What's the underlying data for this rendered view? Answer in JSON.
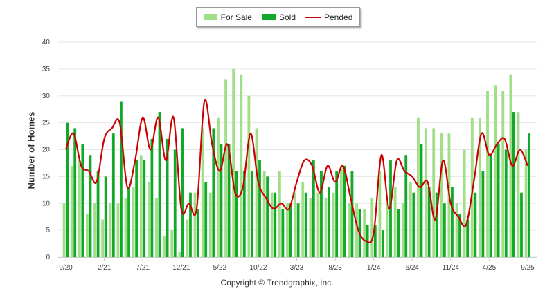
{
  "chart_data": {
    "type": "bar",
    "title": "",
    "ylabel": "Number of Homes",
    "xlabel": "",
    "ylim": [
      0,
      40
    ],
    "yticks": [
      "0",
      "5",
      "10",
      "15",
      "20",
      "25",
      "30",
      "35",
      "40"
    ],
    "grid": true,
    "legend_position": "top-center",
    "months": [
      "9/20",
      "10/20",
      "11/20",
      "12/20",
      "1/21",
      "2/21",
      "3/21",
      "4/21",
      "5/21",
      "6/21",
      "7/21",
      "8/21",
      "9/21",
      "10/21",
      "11/21",
      "12/21",
      "1/22",
      "2/22",
      "3/22",
      "4/22",
      "5/22",
      "6/22",
      "7/22",
      "8/22",
      "9/22",
      "10/22",
      "11/22",
      "12/22",
      "1/23",
      "2/23",
      "3/23",
      "4/23",
      "5/23",
      "6/23",
      "7/23",
      "8/23",
      "9/23",
      "10/23",
      "11/23",
      "12/23",
      "1/24",
      "2/24",
      "3/24",
      "4/24",
      "5/24",
      "6/24",
      "7/24",
      "8/24",
      "9/24",
      "10/24",
      "11/24",
      "12/24",
      "1/25",
      "2/25",
      "3/25",
      "4/25",
      "5/25",
      "6/25",
      "7/25",
      "8/25",
      "9/25"
    ],
    "xtick_labels": [
      "9/20",
      "2/21",
      "7/21",
      "12/21",
      "5/22",
      "10/22",
      "3/23",
      "8/23",
      "1/24",
      "6/24",
      "11/24",
      "4/25",
      "9/25"
    ],
    "series": [
      {
        "name": "For Sale",
        "type": "bar",
        "color": "#9fdf85",
        "values": [
          10,
          17,
          18,
          8,
          10,
          7,
          10,
          10,
          11,
          13,
          19,
          14,
          11,
          4,
          5,
          1,
          7,
          12,
          24,
          12,
          26,
          33,
          35,
          34,
          30,
          24,
          16,
          12,
          16,
          10,
          12,
          14,
          11,
          12,
          11,
          12,
          17,
          10,
          10,
          9,
          11,
          16,
          10,
          13,
          10,
          14,
          26,
          24,
          24,
          23,
          23,
          10,
          20,
          26,
          26,
          31,
          32,
          31,
          34,
          27,
          20
        ]
      },
      {
        "name": "Sold",
        "type": "bar",
        "color": "#12a829",
        "values": [
          25,
          24,
          21,
          19,
          16,
          15,
          23,
          29,
          13,
          18,
          18,
          22,
          27,
          22,
          20,
          24,
          12,
          9,
          14,
          24,
          21,
          21,
          16,
          16,
          16,
          18,
          15,
          12,
          9,
          10,
          10,
          12,
          18,
          16,
          13,
          16,
          17,
          16,
          9,
          6,
          6,
          5,
          18,
          9,
          19,
          12,
          21,
          13,
          12,
          10,
          13,
          8,
          7,
          12,
          16,
          19,
          21,
          20,
          27,
          12,
          23
        ]
      },
      {
        "name": "Pended",
        "type": "line",
        "color": "#cc0000",
        "values": [
          20,
          23,
          17,
          16,
          14,
          22,
          24,
          25,
          13,
          18,
          26,
          20,
          26,
          18,
          26,
          9,
          10,
          9,
          29,
          21,
          16,
          21,
          12,
          13,
          23,
          14,
          11,
          9,
          10,
          9,
          14,
          18,
          17,
          12,
          17,
          14,
          17,
          11,
          5,
          3,
          4.5,
          19,
          9,
          18,
          16,
          15,
          13,
          14,
          7,
          18,
          10,
          7.5,
          6,
          14,
          23,
          19,
          21,
          22,
          17,
          20,
          17
        ]
      }
    ]
  },
  "footer": {
    "copyright": "Copyright © Trendgraphix, Inc."
  }
}
